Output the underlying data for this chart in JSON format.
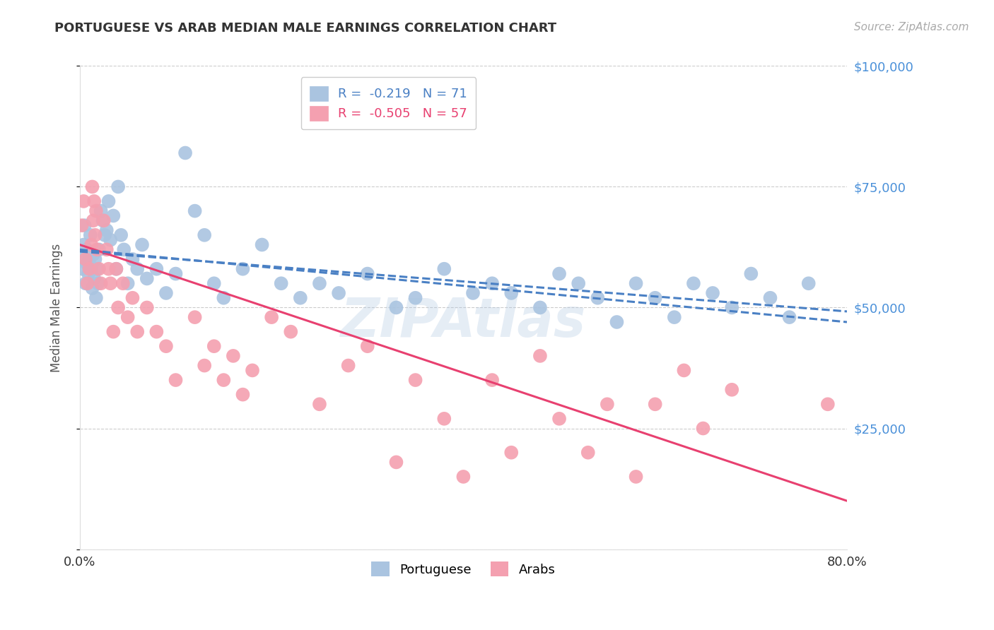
{
  "title": "PORTUGUESE VS ARAB MEDIAN MALE EARNINGS CORRELATION CHART",
  "source": "Source: ZipAtlas.com",
  "ylabel": "Median Male Earnings",
  "xlabel": "",
  "xlim": [
    0.0,
    0.8
  ],
  "ylim": [
    0,
    100000
  ],
  "yticks": [
    0,
    25000,
    50000,
    75000,
    100000
  ],
  "grid_color": "#cccccc",
  "background_color": "#ffffff",
  "portuguese_color": "#aac4e0",
  "arab_color": "#f4a0b0",
  "trend_portuguese_color": "#4a80c4",
  "trend_arab_color": "#e84070",
  "R_portuguese": -0.219,
  "N_portuguese": 71,
  "R_arab": -0.505,
  "N_arab": 57,
  "legend_label_portuguese": "Portuguese",
  "legend_label_arab": "Arabs",
  "title_color": "#333333",
  "axis_label_color": "#555555",
  "ytick_color": "#4a90d9",
  "xtick_color": "#333333",
  "portuguese_x": [
    0.002,
    0.003,
    0.004,
    0.005,
    0.006,
    0.007,
    0.008,
    0.009,
    0.01,
    0.011,
    0.012,
    0.013,
    0.014,
    0.015,
    0.016,
    0.017,
    0.018,
    0.019,
    0.02,
    0.022,
    0.024,
    0.026,
    0.028,
    0.03,
    0.032,
    0.035,
    0.038,
    0.04,
    0.043,
    0.046,
    0.05,
    0.055,
    0.06,
    0.065,
    0.07,
    0.08,
    0.09,
    0.1,
    0.11,
    0.12,
    0.13,
    0.14,
    0.15,
    0.17,
    0.19,
    0.21,
    0.23,
    0.25,
    0.27,
    0.3,
    0.33,
    0.35,
    0.38,
    0.41,
    0.43,
    0.45,
    0.48,
    0.5,
    0.52,
    0.54,
    0.56,
    0.58,
    0.6,
    0.62,
    0.64,
    0.66,
    0.68,
    0.7,
    0.72,
    0.74,
    0.76
  ],
  "portuguese_y": [
    60000,
    58000,
    63000,
    67000,
    55000,
    62000,
    59000,
    57000,
    60000,
    65000,
    58000,
    54000,
    61000,
    56000,
    60000,
    52000,
    58000,
    55000,
    62000,
    70000,
    68000,
    65000,
    66000,
    72000,
    64000,
    69000,
    58000,
    75000,
    65000,
    62000,
    55000,
    60000,
    58000,
    63000,
    56000,
    58000,
    53000,
    57000,
    82000,
    70000,
    65000,
    55000,
    52000,
    58000,
    63000,
    55000,
    52000,
    55000,
    53000,
    57000,
    50000,
    52000,
    58000,
    53000,
    55000,
    53000,
    50000,
    57000,
    55000,
    52000,
    47000,
    55000,
    52000,
    48000,
    55000,
    53000,
    50000,
    57000,
    52000,
    48000,
    55000
  ],
  "arab_x": [
    0.002,
    0.004,
    0.006,
    0.008,
    0.01,
    0.012,
    0.013,
    0.014,
    0.015,
    0.016,
    0.017,
    0.018,
    0.02,
    0.022,
    0.025,
    0.028,
    0.03,
    0.032,
    0.035,
    0.038,
    0.04,
    0.045,
    0.05,
    0.055,
    0.06,
    0.07,
    0.08,
    0.09,
    0.1,
    0.12,
    0.13,
    0.14,
    0.15,
    0.16,
    0.17,
    0.18,
    0.2,
    0.22,
    0.25,
    0.28,
    0.3,
    0.33,
    0.35,
    0.38,
    0.4,
    0.43,
    0.45,
    0.48,
    0.5,
    0.53,
    0.55,
    0.58,
    0.6,
    0.63,
    0.65,
    0.68,
    0.78
  ],
  "arab_y": [
    67000,
    72000,
    60000,
    55000,
    58000,
    63000,
    75000,
    68000,
    72000,
    65000,
    70000,
    62000,
    58000,
    55000,
    68000,
    62000,
    58000,
    55000,
    45000,
    58000,
    50000,
    55000,
    48000,
    52000,
    45000,
    50000,
    45000,
    42000,
    35000,
    48000,
    38000,
    42000,
    35000,
    40000,
    32000,
    37000,
    48000,
    45000,
    30000,
    38000,
    42000,
    18000,
    35000,
    27000,
    15000,
    35000,
    20000,
    40000,
    27000,
    20000,
    30000,
    15000,
    30000,
    37000,
    25000,
    33000,
    30000
  ]
}
